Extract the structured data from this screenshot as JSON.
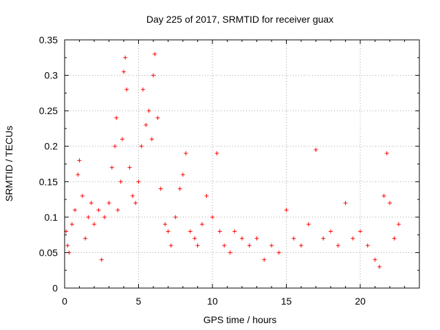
{
  "chart_data": {
    "type": "scatter",
    "title": "Day 225 of 2017, SRMTID for receiver guax",
    "xlabel": "GPS time / hours",
    "ylabel": "SRMTID / TECUs",
    "xlim": [
      0,
      24
    ],
    "ylim": [
      0,
      0.35
    ],
    "xticks": [
      0,
      5,
      10,
      15,
      20
    ],
    "yticks": [
      0,
      0.05,
      0.1,
      0.15,
      0.2,
      0.25,
      0.3,
      0.35
    ],
    "grid": true,
    "marker": "+",
    "color": "#ff0000",
    "series": [
      {
        "name": "SRMTID",
        "sampled_points": [
          [
            0.1,
            0.08
          ],
          [
            0.2,
            0.06
          ],
          [
            0.3,
            0.05
          ],
          [
            0.5,
            0.09
          ],
          [
            0.7,
            0.11
          ],
          [
            0.9,
            0.16
          ],
          [
            1.0,
            0.18
          ],
          [
            1.2,
            0.13
          ],
          [
            1.4,
            0.07
          ],
          [
            1.6,
            0.1
          ],
          [
            1.8,
            0.12
          ],
          [
            2.0,
            0.09
          ],
          [
            2.3,
            0.11
          ],
          [
            2.5,
            0.04
          ],
          [
            2.7,
            0.1
          ],
          [
            3.0,
            0.12
          ],
          [
            3.2,
            0.17
          ],
          [
            3.4,
            0.2
          ],
          [
            3.5,
            0.24
          ],
          [
            3.6,
            0.11
          ],
          [
            3.8,
            0.15
          ],
          [
            3.9,
            0.21
          ],
          [
            4.0,
            0.305
          ],
          [
            4.1,
            0.325
          ],
          [
            4.2,
            0.28
          ],
          [
            4.4,
            0.17
          ],
          [
            4.6,
            0.13
          ],
          [
            4.8,
            0.12
          ],
          [
            5.0,
            0.15
          ],
          [
            5.2,
            0.2
          ],
          [
            5.3,
            0.28
          ],
          [
            5.5,
            0.23
          ],
          [
            5.7,
            0.25
          ],
          [
            5.9,
            0.21
          ],
          [
            6.0,
            0.3
          ],
          [
            6.1,
            0.33
          ],
          [
            6.3,
            0.24
          ],
          [
            6.5,
            0.14
          ],
          [
            6.8,
            0.09
          ],
          [
            7.0,
            0.08
          ],
          [
            7.2,
            0.06
          ],
          [
            7.5,
            0.1
          ],
          [
            7.8,
            0.14
          ],
          [
            8.0,
            0.16
          ],
          [
            8.2,
            0.19
          ],
          [
            8.5,
            0.08
          ],
          [
            8.8,
            0.07
          ],
          [
            9.0,
            0.06
          ],
          [
            9.3,
            0.09
          ],
          [
            9.6,
            0.13
          ],
          [
            10.0,
            0.1
          ],
          [
            10.3,
            0.19
          ],
          [
            10.5,
            0.08
          ],
          [
            10.8,
            0.06
          ],
          [
            11.2,
            0.05
          ],
          [
            11.5,
            0.08
          ],
          [
            12.0,
            0.07
          ],
          [
            12.5,
            0.06
          ],
          [
            13.0,
            0.07
          ],
          [
            13.5,
            0.04
          ],
          [
            14.0,
            0.06
          ],
          [
            14.5,
            0.05
          ],
          [
            15.0,
            0.11
          ],
          [
            15.5,
            0.07
          ],
          [
            16.0,
            0.06
          ],
          [
            16.5,
            0.09
          ],
          [
            17.0,
            0.195
          ],
          [
            17.5,
            0.07
          ],
          [
            18.0,
            0.08
          ],
          [
            18.5,
            0.06
          ],
          [
            19.0,
            0.12
          ],
          [
            19.5,
            0.07
          ],
          [
            20.0,
            0.08
          ],
          [
            20.5,
            0.06
          ],
          [
            21.0,
            0.04
          ],
          [
            21.3,
            0.03
          ],
          [
            21.6,
            0.13
          ],
          [
            21.8,
            0.19
          ],
          [
            22.0,
            0.12
          ],
          [
            22.3,
            0.07
          ],
          [
            22.6,
            0.09
          ]
        ]
      }
    ]
  }
}
